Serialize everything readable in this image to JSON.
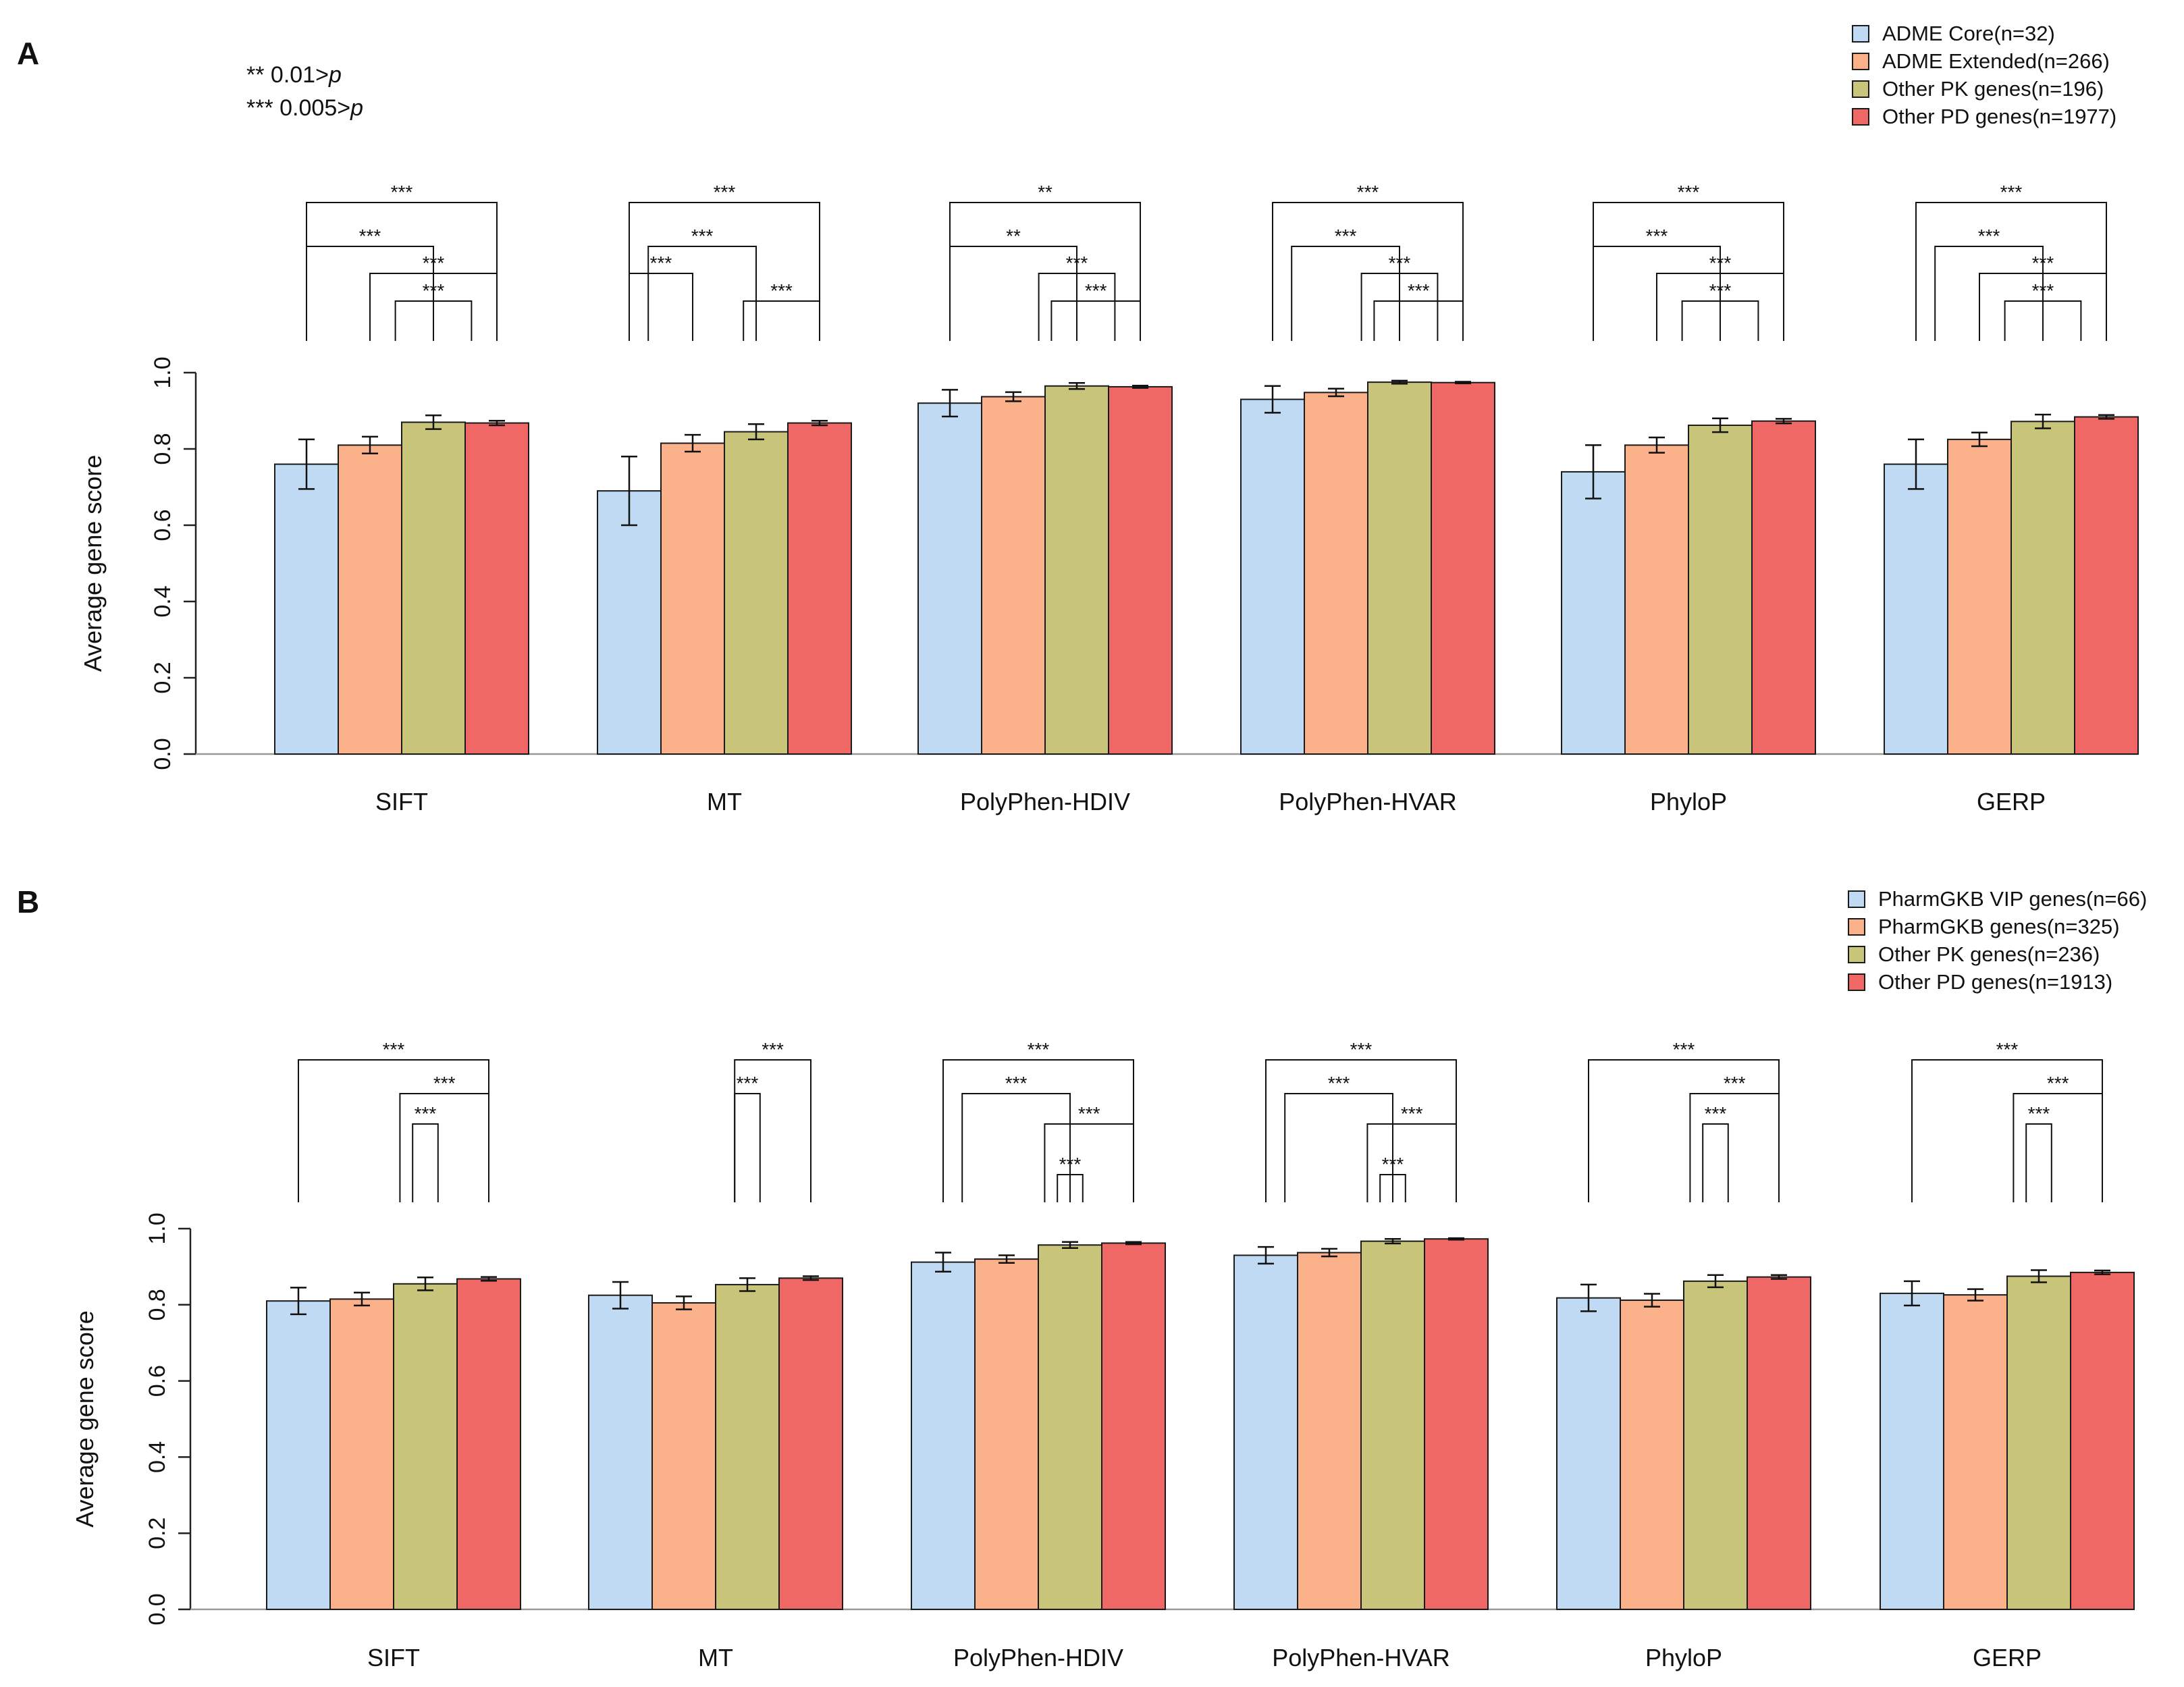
{
  "significance_notes": [
    {
      "stars": "**",
      "text": " 0.01>",
      "var": "p"
    },
    {
      "stars": "***",
      "text": " 0.005>",
      "var": "p"
    }
  ],
  "chart_data": [
    {
      "panel_label": "A",
      "type": "bar",
      "ylabel": "Average gene score",
      "ylim": [
        0,
        1
      ],
      "yticks": [
        "0.0",
        "0.2",
        "0.4",
        "0.6",
        "0.8",
        "1.0"
      ],
      "categories": [
        "SIFT",
        "MT",
        "PolyPhen-HDIV",
        "PolyPhen-HVAR",
        "PhyloP",
        "GERP"
      ],
      "series": [
        {
          "name": "ADME Core(n=32)",
          "color": "#bfdaf2",
          "values": [
            0.76,
            0.69,
            0.92,
            0.93,
            0.74,
            0.76
          ],
          "errors": [
            0.065,
            0.09,
            0.035,
            0.035,
            0.07,
            0.065
          ]
        },
        {
          "name": "ADME Extended(n=266)",
          "color": "#fbb189",
          "values": [
            0.81,
            0.815,
            0.937,
            0.948,
            0.81,
            0.825
          ],
          "errors": [
            0.022,
            0.022,
            0.012,
            0.01,
            0.02,
            0.018
          ]
        },
        {
          "name": "Other PK genes(n=196)",
          "color": "#c8c47a",
          "values": [
            0.87,
            0.845,
            0.965,
            0.975,
            0.862,
            0.872
          ],
          "errors": [
            0.018,
            0.02,
            0.008,
            0.004,
            0.018,
            0.018
          ]
        },
        {
          "name": "Other PD genes(n=1977)",
          "color": "#ef6866",
          "values": [
            0.868,
            0.868,
            0.963,
            0.974,
            0.873,
            0.884
          ],
          "errors": [
            0.006,
            0.006,
            0.003,
            0.002,
            0.006,
            0.005
          ]
        }
      ],
      "significance": [
        {
          "category": 0,
          "brackets": [
            [
              "0",
              "3",
              "***"
            ],
            [
              "0",
              "2",
              "***"
            ],
            [
              "1",
              "3",
              "***"
            ],
            [
              "1.4",
              "2.6",
              "***"
            ]
          ]
        },
        {
          "category": 1,
          "brackets": [
            [
              "0",
              "3",
              "***"
            ],
            [
              "0.3",
              "2",
              "***"
            ],
            [
              "0",
              "1",
              "***"
            ],
            [
              "1.8",
              "3",
              "***"
            ]
          ]
        },
        {
          "category": 2,
          "brackets": [
            [
              "0",
              "3",
              "**"
            ],
            [
              "0",
              "2",
              "**"
            ],
            [
              "1.4",
              "2.6",
              "***"
            ],
            [
              "1.6",
              "3",
              "***"
            ]
          ]
        },
        {
          "category": 3,
          "brackets": [
            [
              "0",
              "3",
              "***"
            ],
            [
              "0.3",
              "2",
              "***"
            ],
            [
              "1.4",
              "2.6",
              "***"
            ],
            [
              "1.6",
              "3",
              "***"
            ]
          ]
        },
        {
          "category": 4,
          "brackets": [
            [
              "0",
              "3",
              "***"
            ],
            [
              "0",
              "2",
              "***"
            ],
            [
              "1",
              "3",
              "***"
            ],
            [
              "1.4",
              "2.6",
              "***"
            ]
          ]
        },
        {
          "category": 5,
          "brackets": [
            [
              "0",
              "3",
              "***"
            ],
            [
              "0.3",
              "2",
              "***"
            ],
            [
              "1",
              "3",
              "***"
            ],
            [
              "1.4",
              "2.6",
              "***"
            ]
          ]
        }
      ]
    },
    {
      "panel_label": "B",
      "type": "bar",
      "ylabel": "Average gene score",
      "ylim": [
        0,
        1
      ],
      "yticks": [
        "0.0",
        "0.2",
        "0.4",
        "0.6",
        "0.8",
        "1.0"
      ],
      "categories": [
        "SIFT",
        "MT",
        "PolyPhen-HDIV",
        "PolyPhen-HVAR",
        "PhyloP",
        "GERP"
      ],
      "series": [
        {
          "name": "PharmGKB VIP genes(n=66)",
          "color": "#bfdaf2",
          "values": [
            0.81,
            0.825,
            0.912,
            0.93,
            0.818,
            0.83
          ],
          "errors": [
            0.035,
            0.035,
            0.025,
            0.022,
            0.035,
            0.032
          ]
        },
        {
          "name": "PharmGKB genes(n=325)",
          "color": "#fbb189",
          "values": [
            0.815,
            0.805,
            0.92,
            0.937,
            0.812,
            0.826
          ],
          "errors": [
            0.017,
            0.017,
            0.01,
            0.01,
            0.017,
            0.015
          ]
        },
        {
          "name": "Other PK genes(n=236)",
          "color": "#c8c47a",
          "values": [
            0.855,
            0.853,
            0.957,
            0.967,
            0.862,
            0.875
          ],
          "errors": [
            0.017,
            0.017,
            0.008,
            0.006,
            0.016,
            0.016
          ]
        },
        {
          "name": "Other PD genes(n=1913)",
          "color": "#ef6866",
          "values": [
            0.868,
            0.87,
            0.962,
            0.973,
            0.873,
            0.885
          ],
          "errors": [
            0.005,
            0.005,
            0.003,
            0.002,
            0.005,
            0.005
          ]
        }
      ],
      "significance": [
        {
          "category": 0,
          "brackets": [
            [
              "0",
              "3",
              "***"
            ],
            [
              "1.6",
              "3",
              "***"
            ],
            [
              "1.8",
              "2.2",
              "***"
            ]
          ]
        },
        {
          "category": 1,
          "brackets": [
            [
              "1.8",
              "3",
              "***"
            ],
            [
              "1.8",
              "2.2",
              "***"
            ]
          ]
        },
        {
          "category": 2,
          "brackets": [
            [
              "0",
              "3",
              "***"
            ],
            [
              "0.3",
              "2",
              "***"
            ],
            [
              "1.6",
              "3",
              "***"
            ],
            [
              "1.8",
              "2.2",
              "***"
            ]
          ]
        },
        {
          "category": 3,
          "brackets": [
            [
              "0",
              "3",
              "***"
            ],
            [
              "0.3",
              "2",
              "***"
            ],
            [
              "1.6",
              "3",
              "***"
            ],
            [
              "1.8",
              "2.2",
              "***"
            ]
          ]
        },
        {
          "category": 4,
          "brackets": [
            [
              "0",
              "3",
              "***"
            ],
            [
              "1.6",
              "3",
              "***"
            ],
            [
              "1.8",
              "2.2",
              "***"
            ]
          ]
        },
        {
          "category": 5,
          "brackets": [
            [
              "0",
              "3",
              "***"
            ],
            [
              "1.6",
              "3",
              "***"
            ],
            [
              "1.8",
              "2.2",
              "***"
            ]
          ]
        }
      ]
    }
  ]
}
